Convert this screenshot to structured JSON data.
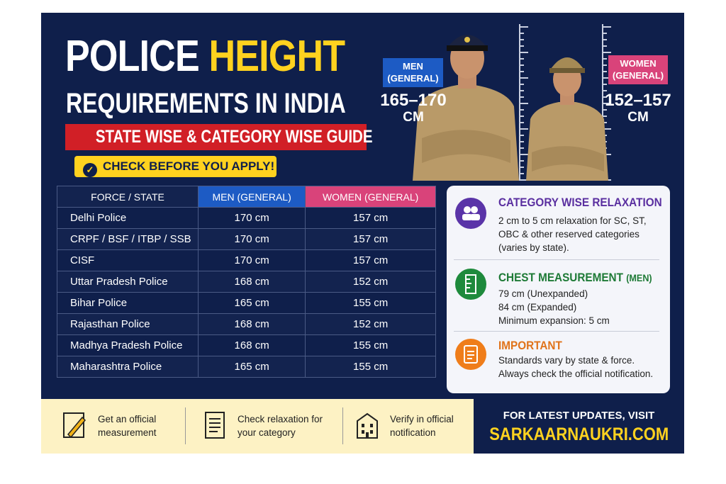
{
  "header": {
    "title_white": "POLICE",
    "title_yellow": "HEIGHT",
    "title_line2": "REQUIREMENTS IN INDIA",
    "subtitle": "STATE WISE & CATEGORY WISE GUIDE",
    "callout": "CHECK BEFORE YOU APPLY!"
  },
  "badges": [
    {
      "label": [
        "MEN",
        "(GENERAL)"
      ],
      "range": "165–170",
      "unit": "CM"
    },
    {
      "label": [
        "WOMEN",
        "(GENERAL)"
      ],
      "range": "152–157",
      "unit": "CM"
    }
  ],
  "table": {
    "columns": [
      "FORCE / STATE",
      "MEN (GENERAL)",
      "WOMEN (GENERAL)"
    ],
    "rows": [
      [
        "Delhi Police",
        "170 cm",
        "157 cm"
      ],
      [
        "CRPF / BSF / ITBP / SSB",
        "170 cm",
        "157 cm"
      ],
      [
        "CISF",
        "170 cm",
        "157 cm"
      ],
      [
        "Uttar Pradesh Police",
        "168 cm",
        "152 cm"
      ],
      [
        "Bihar Police",
        "165 cm",
        "155 cm"
      ],
      [
        "Rajasthan Police",
        "168 cm",
        "152 cm"
      ],
      [
        "Madhya Pradesh Police",
        "168 cm",
        "155 cm"
      ],
      [
        "Maharashtra Police",
        "165 cm",
        "155 cm"
      ]
    ]
  },
  "info_cards": [
    {
      "title": "CATEGORY WISE RELAXATION",
      "body": [
        "2 cm to 5 cm relaxation for SC, ST, OBC & other reserved categories (varies by state)."
      ]
    },
    {
      "title": "CHEST MEASUREMENT",
      "title_suffix": "(MEN)",
      "body": [
        "79 cm (Unexpanded)",
        "84 cm (Expanded)",
        "Minimum expansion: 5 cm"
      ]
    },
    {
      "title": "IMPORTANT",
      "body": [
        "Standards vary by state & force. Always check the official notification."
      ]
    }
  ],
  "tips": [
    "Get an official measurement",
    "Check relaxation for your category",
    "Verify in official notification"
  ],
  "footer": {
    "cta": "FOR LATEST UPDATES, VISIT",
    "site": "SARKAARNAUKRI.COM"
  }
}
